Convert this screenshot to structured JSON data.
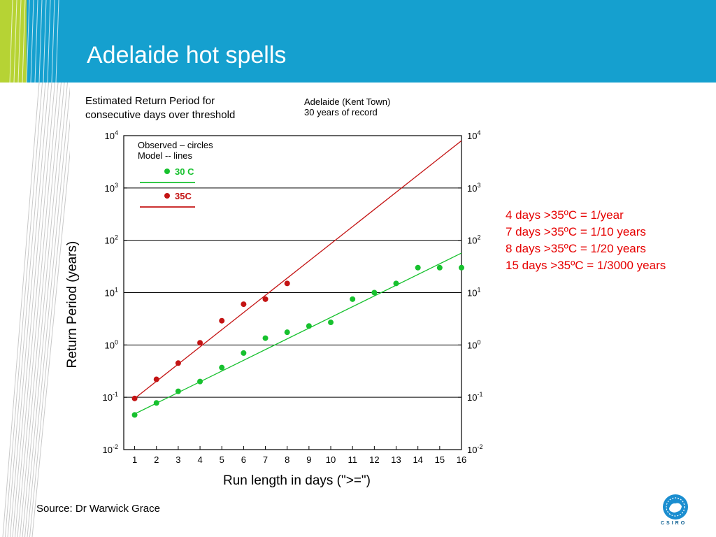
{
  "slide": {
    "title": "Adelaide hot spells",
    "source": "Source: Dr Warwick Grace",
    "logo_text": "CSIRO",
    "colors": {
      "header": "#15a0cf",
      "accent": "#b6d334",
      "annotation": "#e60000"
    }
  },
  "annotations": [
    "4 days >35ºC = 1/year",
    "7 days >35ºC = 1/10 years",
    "8 days >35ºC = 1/20 years",
    "15 days >35ºC = 1/3000 years"
  ],
  "chart_data": {
    "type": "scatter",
    "title": "Estimated Return Period for consecutive days over threshold",
    "title_lines": [
      "Estimated Return Period for",
      "consecutive days over threshold"
    ],
    "subtitle_lines": [
      "Adelaide (Kent Town)",
      "30 years of record"
    ],
    "legend_note": [
      "Observed  – circles",
      "Model -- lines"
    ],
    "xlabel": "Run length in days (\">=\")",
    "ylabel": "Return Period (years)",
    "x_ticks": [
      1,
      2,
      3,
      4,
      5,
      6,
      7,
      8,
      9,
      10,
      11,
      12,
      13,
      14,
      15,
      16
    ],
    "xlim": [
      0.5,
      16
    ],
    "y_scale": "log",
    "ylim": [
      0.01,
      10000
    ],
    "y_tick_exponents": [
      -2,
      -1,
      0,
      1,
      2,
      3,
      4
    ],
    "y_tick_base": "10",
    "grid": "horizontal",
    "legend_position": "top-left",
    "series": [
      {
        "name": "30 C",
        "color": "#17c12e",
        "observed": [
          {
            "x": 1,
            "y": 0.046
          },
          {
            "x": 2,
            "y": 0.078
          },
          {
            "x": 3,
            "y": 0.13
          },
          {
            "x": 4,
            "y": 0.2
          },
          {
            "x": 5,
            "y": 0.37
          },
          {
            "x": 6,
            "y": 0.7
          },
          {
            "x": 7,
            "y": 1.35
          },
          {
            "x": 8,
            "y": 1.75
          },
          {
            "x": 9,
            "y": 2.3
          },
          {
            "x": 10,
            "y": 2.7
          },
          {
            "x": 11,
            "y": 7.5
          },
          {
            "x": 12,
            "y": 10
          },
          {
            "x": 13,
            "y": 15
          },
          {
            "x": 14,
            "y": 30
          },
          {
            "x": 15,
            "y": 30
          },
          {
            "x": 16,
            "y": 30
          }
        ],
        "model": [
          {
            "x": 1,
            "y": 0.048
          },
          {
            "x": 16,
            "y": 57
          }
        ]
      },
      {
        "name": "35C",
        "color": "#c41414",
        "observed": [
          {
            "x": 1,
            "y": 0.095
          },
          {
            "x": 2,
            "y": 0.22
          },
          {
            "x": 3,
            "y": 0.45
          },
          {
            "x": 4,
            "y": 1.1
          },
          {
            "x": 5,
            "y": 2.9
          },
          {
            "x": 6,
            "y": 6
          },
          {
            "x": 7,
            "y": 7.5
          },
          {
            "x": 8,
            "y": 15
          }
        ],
        "model": [
          {
            "x": 1,
            "y": 0.095
          },
          {
            "x": 16,
            "y": 8000
          }
        ]
      }
    ]
  }
}
